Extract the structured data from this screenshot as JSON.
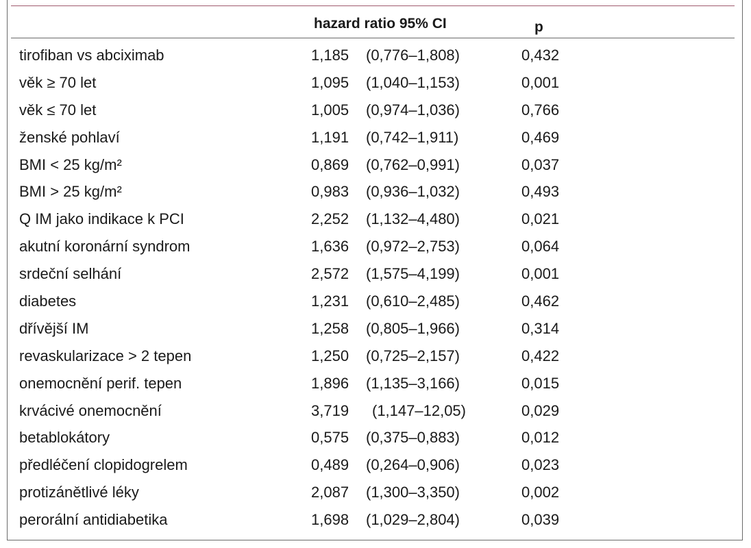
{
  "table": {
    "header": {
      "hazard_ratio": "hazard ratio 95% CI",
      "p": "p"
    },
    "rows": [
      {
        "label": "tirofiban vs abciximab",
        "hr": "1,185",
        "ci": "(0,776–1,808)",
        "p": "0,432"
      },
      {
        "label": "věk ≥ 70 let",
        "hr": "1,095",
        "ci": "(1,040–1,153)",
        "p": "0,001"
      },
      {
        "label": "věk ≤ 70 let",
        "hr": "1,005",
        "ci": "(0,974–1,036)",
        "p": "0,766"
      },
      {
        "label": "ženské pohlaví",
        "hr": "1,191",
        "ci": "(0,742–1,911)",
        "p": "0,469"
      },
      {
        "label": "BMI < 25 kg/m²",
        "hr": "0,869",
        "ci": "(0,762–0,991)",
        "p": "0,037"
      },
      {
        "label": "BMI > 25 kg/m²",
        "hr": "0,983",
        "ci": "(0,936–1,032)",
        "p": "0,493"
      },
      {
        "label": "Q IM jako indikace k PCI",
        "hr": "2,252",
        "ci": "(1,132–4,480)",
        "p": "0,021"
      },
      {
        "label": "akutní koronární syndrom",
        "hr": "1,636",
        "ci": "(0,972–2,753)",
        "p": "0,064"
      },
      {
        "label": "srdeční selhání",
        "hr": "2,572",
        "ci": "(1,575–4,199)",
        "p": "0,001"
      },
      {
        "label": "diabetes",
        "hr": "1,231",
        "ci": "(0,610–2,485)",
        "p": "0,462"
      },
      {
        "label": "dřívější IM",
        "hr": "1,258",
        "ci": "(0,805–1,966)",
        "p": "0,314"
      },
      {
        "label": "revaskularizace > 2 tepen",
        "hr": "1,250",
        "ci": "(0,725–2,157)",
        "p": "0,422"
      },
      {
        "label": "onemocnění perif. tepen",
        "hr": "1,896",
        "ci": "(1,135–3,166)",
        "p": "0,015"
      },
      {
        "label": "krvácivé onemocnění",
        "hr": "3,719",
        "ci": "(1,147–12,05)",
        "p": "0,029",
        "wide": true
      },
      {
        "label": "betablokátory",
        "hr": "0,575",
        "ci": "(0,375–0,883)",
        "p": "0,012"
      },
      {
        "label": "předléčení clopidogrelem",
        "hr": "0,489",
        "ci": "(0,264–0,906)",
        "p": "0,023"
      },
      {
        "label": "protizánětlivé léky",
        "hr": "2,087",
        "ci": "(1,300–3,350)",
        "p": "0,002"
      },
      {
        "label": "perorální antidiabetika",
        "hr": "1,698",
        "ci": "(1,029–2,804)",
        "p": "0,039"
      }
    ]
  }
}
